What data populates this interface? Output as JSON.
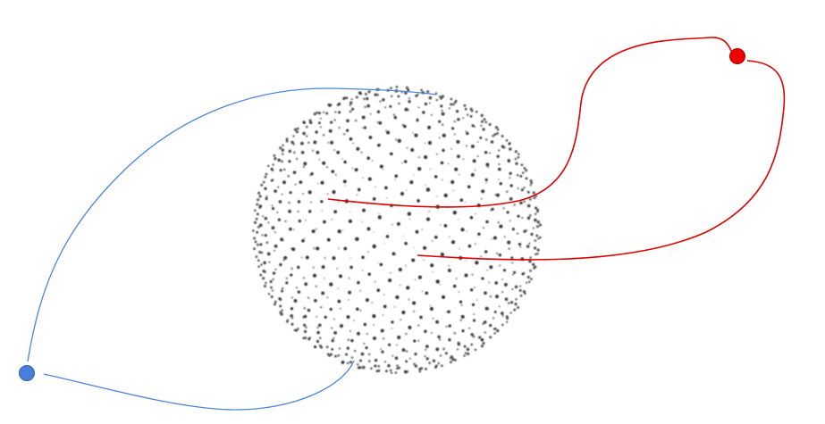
{
  "diagram": {
    "background": "#ffffff",
    "sphere": {
      "dot_color": "#1a1a1a",
      "point_count": 900
    },
    "blue_node": {
      "color": "#4a7fd9",
      "stroke": "#2f5fb0",
      "connections": 2
    },
    "red_node": {
      "color": "#ee0000",
      "stroke": "#aa0000",
      "connections": 2
    },
    "curves": {
      "blue_color": "#4a86d9",
      "red_color": "#dd0000"
    }
  }
}
